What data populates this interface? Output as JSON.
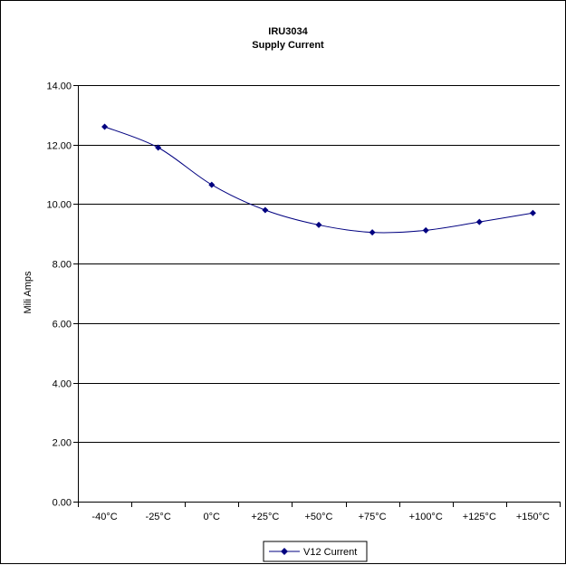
{
  "chart_data": {
    "type": "line",
    "title": "IRU3034",
    "subtitle": "Supply Current",
    "xlabel": "",
    "ylabel": "Mili Amps",
    "categories": [
      "-40°C",
      "-25°C",
      "0°C",
      "+25°C",
      "+50°C",
      "+75°C",
      "+100°C",
      "+125°C",
      "+150°C"
    ],
    "ylim": [
      0,
      14
    ],
    "yticks": [
      "0.00",
      "2.00",
      "4.00",
      "6.00",
      "8.00",
      "10.00",
      "12.00",
      "14.00"
    ],
    "grid": true,
    "legend_position": "bottom",
    "series": [
      {
        "name": "V12 Current",
        "color": "#000080",
        "marker": "diamond",
        "values": [
          12.6,
          11.9,
          10.65,
          9.8,
          9.3,
          9.05,
          9.12,
          9.4,
          9.7
        ]
      }
    ]
  }
}
